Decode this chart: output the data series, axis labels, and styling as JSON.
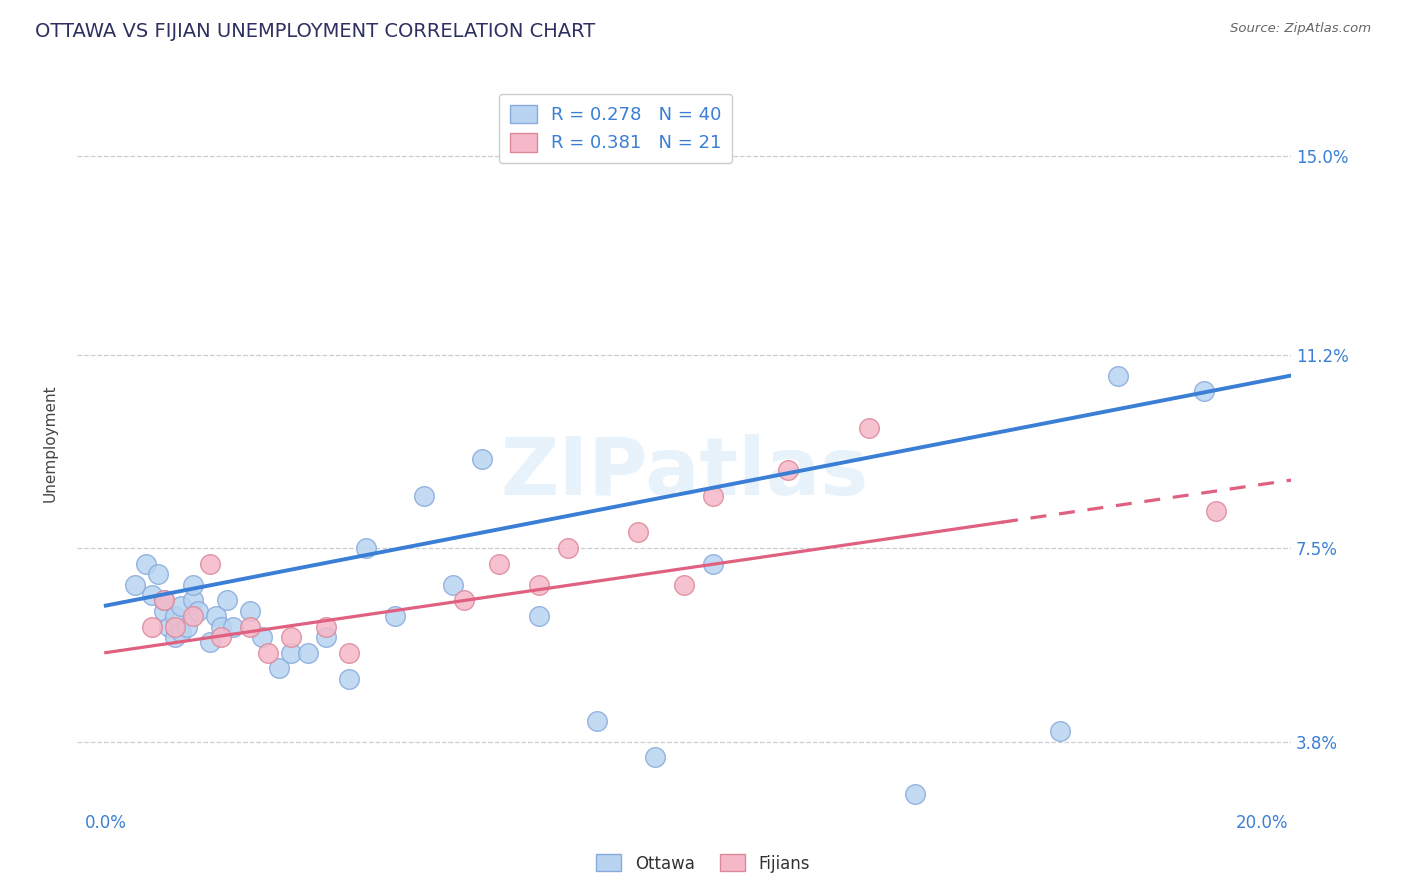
{
  "title": "OTTAWA VS FIJIAN UNEMPLOYMENT CORRELATION CHART",
  "source_text": "Source: ZipAtlas.com",
  "xlabel": "",
  "ylabel": "Unemployment",
  "xlim": [
    -0.005,
    0.205
  ],
  "ylim": [
    0.025,
    0.165
  ],
  "yticks": [
    0.038,
    0.075,
    0.112,
    0.15
  ],
  "ytick_labels": [
    "3.8%",
    "7.5%",
    "11.2%",
    "15.0%"
  ],
  "xticks": [
    0.0,
    0.05,
    0.1,
    0.15,
    0.2
  ],
  "xtick_labels": [
    "0.0%",
    "",
    "",
    "",
    "20.0%"
  ],
  "ottawa_color": "#b8d4f0",
  "fijian_color": "#f5b8c8",
  "ottawa_edge": "#88aadd",
  "fijian_edge": "#dd8899",
  "blue_line_color": "#3a7fd5",
  "pink_line_color": "#e06080",
  "legend_R_ottawa": "0.278",
  "legend_N_ottawa": "40",
  "legend_R_fijian": "0.381",
  "legend_N_fijian": "21",
  "watermark": "ZIPatlas",
  "background_color": "#ffffff",
  "ottawa_points_x": [
    0.005,
    0.007,
    0.008,
    0.009,
    0.01,
    0.01,
    0.011,
    0.012,
    0.012,
    0.013,
    0.013,
    0.014,
    0.015,
    0.015,
    0.016,
    0.018,
    0.019,
    0.02,
    0.021,
    0.022,
    0.025,
    0.027,
    0.03,
    0.032,
    0.035,
    0.038,
    0.042,
    0.045,
    0.05,
    0.055,
    0.06,
    0.065,
    0.075,
    0.085,
    0.095,
    0.105,
    0.14,
    0.165,
    0.175,
    0.19
  ],
  "ottawa_points_y": [
    0.068,
    0.072,
    0.066,
    0.07,
    0.063,
    0.065,
    0.06,
    0.058,
    0.062,
    0.059,
    0.064,
    0.06,
    0.065,
    0.068,
    0.063,
    0.057,
    0.062,
    0.06,
    0.065,
    0.06,
    0.063,
    0.058,
    0.052,
    0.055,
    0.055,
    0.058,
    0.05,
    0.075,
    0.062,
    0.085,
    0.068,
    0.092,
    0.062,
    0.042,
    0.035,
    0.072,
    0.028,
    0.04,
    0.108,
    0.105
  ],
  "fijian_points_x": [
    0.008,
    0.01,
    0.012,
    0.015,
    0.018,
    0.02,
    0.025,
    0.028,
    0.032,
    0.038,
    0.042,
    0.062,
    0.068,
    0.075,
    0.08,
    0.092,
    0.1,
    0.105,
    0.118,
    0.132,
    0.192
  ],
  "fijian_points_y": [
    0.06,
    0.065,
    0.06,
    0.062,
    0.072,
    0.058,
    0.06,
    0.055,
    0.058,
    0.06,
    0.055,
    0.065,
    0.072,
    0.068,
    0.075,
    0.078,
    0.068,
    0.085,
    0.09,
    0.098,
    0.082
  ],
  "ottawa_line_x": [
    0.0,
    0.205
  ],
  "ottawa_line_y": [
    0.064,
    0.108
  ],
  "fijian_line_x": [
    0.0,
    0.205
  ],
  "fijian_line_y": [
    0.055,
    0.088
  ],
  "fijian_line_solid_end": 0.155
}
